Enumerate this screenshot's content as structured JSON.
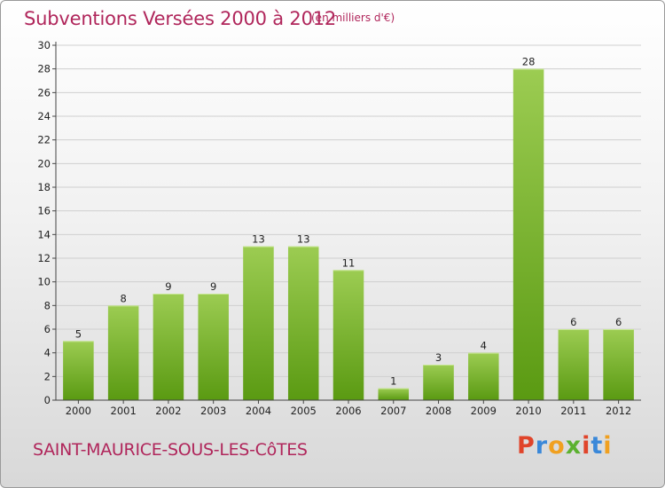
{
  "header": {
    "title": "Subventions Versées 2000 à 2012",
    "subtitle": "(en milliers d'€)"
  },
  "footer": {
    "commune": "SAINT-MAURICE-SOUS-LES-CôTES",
    "logo_text": "Proxiti",
    "logo_colors": [
      "#e0442a",
      "#3a88d9",
      "#f0a020",
      "#5cb130",
      "#e0442a",
      "#3a88d9",
      "#f0a020"
    ]
  },
  "colors": {
    "bar_top": "#9ccc52",
    "bar_bottom": "#5a9a12",
    "grid": "#cfcfcf",
    "axis": "#444444",
    "title": "#b0265b"
  },
  "chart_data": {
    "type": "bar",
    "categories": [
      "2000",
      "2001",
      "2002",
      "2003",
      "2004",
      "2005",
      "2006",
      "2007",
      "2008",
      "2009",
      "2010",
      "2011",
      "2012"
    ],
    "values": [
      5,
      8,
      9,
      9,
      13,
      13,
      11,
      1,
      3,
      4,
      28,
      6,
      6
    ],
    "ylim": [
      0,
      30
    ],
    "yticks": [
      0,
      2,
      4,
      6,
      8,
      10,
      12,
      14,
      16,
      18,
      20,
      22,
      24,
      26,
      28,
      30
    ],
    "grid": true,
    "legend": "none"
  }
}
